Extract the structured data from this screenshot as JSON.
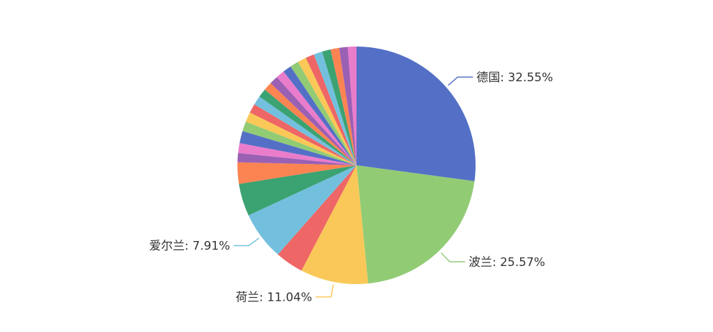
{
  "chart_data": {
    "type": "pie",
    "colors": [
      "#5470c6",
      "#91cc75",
      "#fac858",
      "#ee6666",
      "#73c0de",
      "#3ba272",
      "#fc8452",
      "#9a60b4",
      "#ea7ccc"
    ],
    "slices": [
      {
        "name": "德国",
        "value": 32.55,
        "label": "德国: 32.55%"
      },
      {
        "name": "波兰",
        "value": 25.57,
        "label": "波兰: 25.57%"
      },
      {
        "name": "荷兰",
        "value": 11.04,
        "label": "荷兰: 11.04%"
      },
      {
        "name": "",
        "value": 4.6
      },
      {
        "name": "爱尔兰",
        "value": 7.91,
        "label": "爱尔兰: 7.91%"
      },
      {
        "name": "",
        "value": 5.3
      },
      {
        "name": "",
        "value": 3.5
      },
      {
        "name": "",
        "value": 1.5
      },
      {
        "name": "",
        "value": 1.6
      },
      {
        "name": "",
        "value": 2.0
      },
      {
        "name": "",
        "value": 1.6
      },
      {
        "name": "",
        "value": 1.6
      },
      {
        "name": "",
        "value": 1.5
      },
      {
        "name": "",
        "value": 1.5
      },
      {
        "name": "",
        "value": 1.4
      },
      {
        "name": "",
        "value": 1.4
      },
      {
        "name": "",
        "value": 1.4
      },
      {
        "name": "",
        "value": 1.4
      },
      {
        "name": "",
        "value": 1.4
      },
      {
        "name": "",
        "value": 1.4
      },
      {
        "name": "",
        "value": 1.4
      },
      {
        "name": "",
        "value": 1.4
      },
      {
        "name": "",
        "value": 1.4
      },
      {
        "name": "",
        "value": 1.4
      },
      {
        "name": "",
        "value": 1.4
      },
      {
        "name": "",
        "value": 1.4
      },
      {
        "name": "",
        "value": 1.4
      }
    ]
  }
}
